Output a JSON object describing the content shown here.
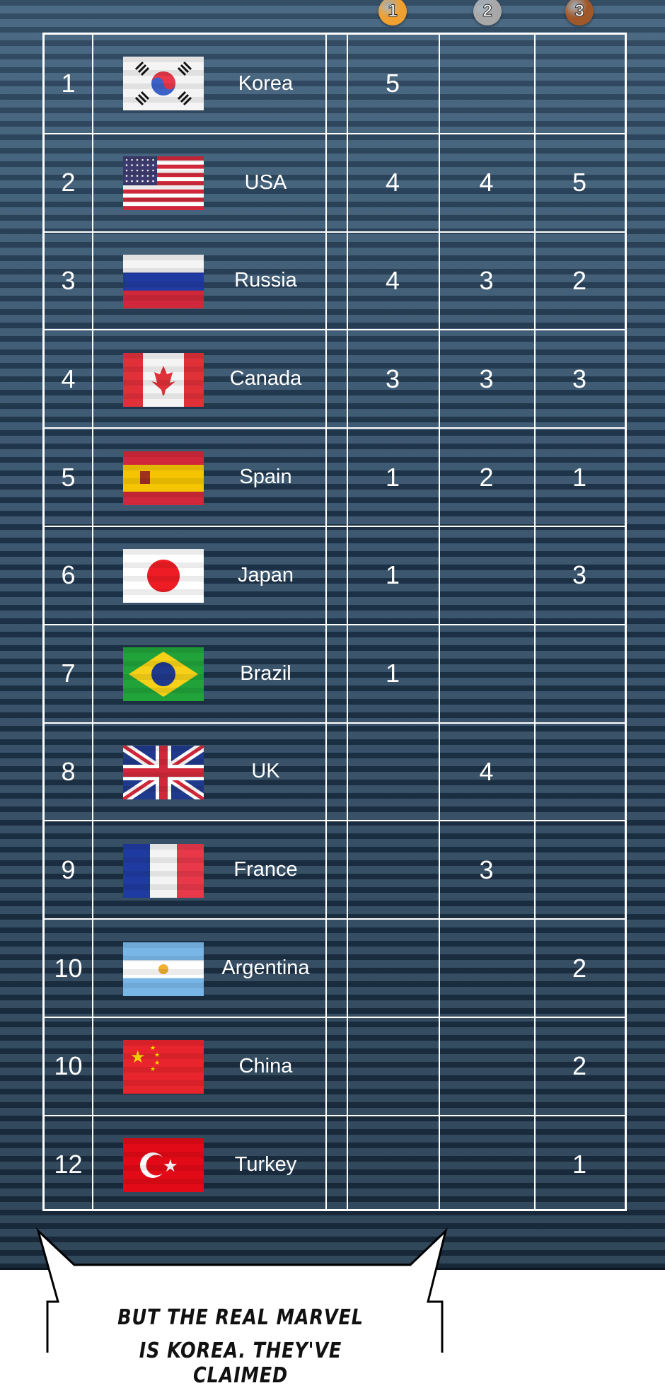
{
  "medals": [
    {
      "label": "1",
      "color": "#f0a030",
      "name": "gold-medal-icon"
    },
    {
      "label": "2",
      "color": "#a8a8a8",
      "name": "silver-medal-icon"
    },
    {
      "label": "3",
      "color": "#a0582a",
      "name": "bronze-medal-icon"
    }
  ],
  "rows": [
    {
      "rank": "1",
      "country": "Korea",
      "flag": "korea",
      "gold": "5",
      "silver": "",
      "bronze": ""
    },
    {
      "rank": "2",
      "country": "USA",
      "flag": "usa",
      "gold": "4",
      "silver": "4",
      "bronze": "5"
    },
    {
      "rank": "3",
      "country": "Russia",
      "flag": "russia",
      "gold": "4",
      "silver": "3",
      "bronze": "2"
    },
    {
      "rank": "4",
      "country": "Canada",
      "flag": "canada",
      "gold": "3",
      "silver": "3",
      "bronze": "3"
    },
    {
      "rank": "5",
      "country": "Spain",
      "flag": "spain",
      "gold": "1",
      "silver": "2",
      "bronze": "1"
    },
    {
      "rank": "6",
      "country": "Japan",
      "flag": "japan",
      "gold": "1",
      "silver": "",
      "bronze": "3"
    },
    {
      "rank": "7",
      "country": "Brazil",
      "flag": "brazil",
      "gold": "1",
      "silver": "",
      "bronze": ""
    },
    {
      "rank": "8",
      "country": "UK",
      "flag": "uk",
      "gold": "",
      "silver": "4",
      "bronze": ""
    },
    {
      "rank": "9",
      "country": "France",
      "flag": "france",
      "gold": "",
      "silver": "3",
      "bronze": ""
    },
    {
      "rank": "10",
      "country": "Argentina",
      "flag": "argentina",
      "gold": "",
      "silver": "",
      "bronze": "2"
    },
    {
      "rank": "10",
      "country": "China",
      "flag": "china",
      "gold": "",
      "silver": "",
      "bronze": "2"
    },
    {
      "rank": "12",
      "country": "Turkey",
      "flag": "turkey",
      "gold": "",
      "silver": "",
      "bronze": "1"
    }
  ],
  "bubble": {
    "line1": "BUT THE REAL MARVEL",
    "line2": "IS KOREA. THEY'VE CLAIMED"
  }
}
